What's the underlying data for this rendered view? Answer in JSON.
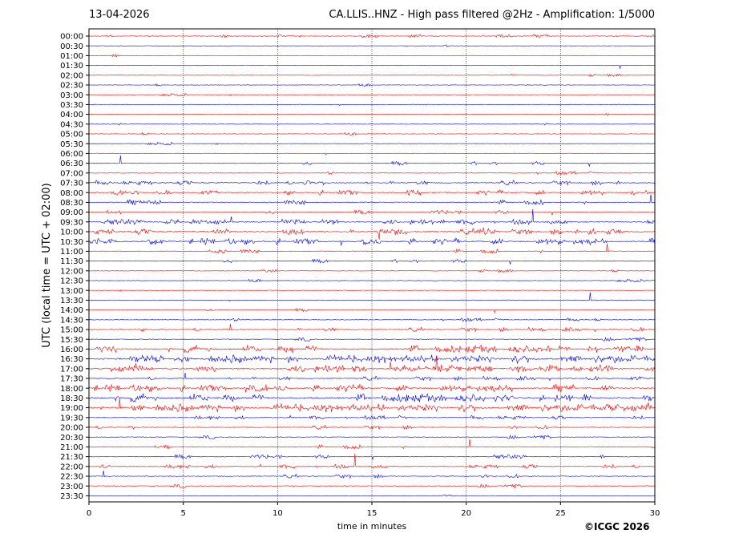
{
  "header": {
    "date": "13-04-2026",
    "title": "CA.LLIS..HNZ - High pass filtered @2Hz - Amplification: 1/5000"
  },
  "footer": {
    "copyright": "©ICGC 2026"
  },
  "colors": {
    "red_trace": "#ff0000",
    "blue_trace": "#0000ff",
    "grid": "#000000"
  },
  "chart_data": {
    "type": "line",
    "title": "CA.LLIS..HNZ - High pass filtered @2Hz - Amplification: 1/5000",
    "xlabel": "time in minutes",
    "ylabel": "UTC (local time = UTC + 02:00)",
    "xlim": [
      0,
      30
    ],
    "x_ticks": [
      "0",
      "5",
      "10",
      "15",
      "20",
      "25",
      "30"
    ],
    "grid": "vertical dotted lines at 5-minute intervals",
    "rows": [
      {
        "label": "00:00",
        "color": "red",
        "activity": 0.15
      },
      {
        "label": "00:30",
        "color": "blue",
        "activity": 0.05
      },
      {
        "label": "01:00",
        "color": "red",
        "activity": 0.03
      },
      {
        "label": "01:30",
        "color": "blue",
        "activity": 0.03
      },
      {
        "label": "02:00",
        "color": "red",
        "activity": 0.03
      },
      {
        "label": "02:30",
        "color": "blue",
        "activity": 0.03
      },
      {
        "label": "03:00",
        "color": "red",
        "activity": 0.08
      },
      {
        "label": "03:30",
        "color": "blue",
        "activity": 0.05
      },
      {
        "label": "04:00",
        "color": "red",
        "activity": 0.05
      },
      {
        "label": "04:30",
        "color": "blue",
        "activity": 0.05
      },
      {
        "label": "05:00",
        "color": "red",
        "activity": 0.06
      },
      {
        "label": "05:30",
        "color": "blue",
        "activity": 0.08
      },
      {
        "label": "06:00",
        "color": "red",
        "activity": 0.1
      },
      {
        "label": "06:30",
        "color": "blue",
        "activity": 0.18
      },
      {
        "label": "07:00",
        "color": "red",
        "activity": 0.15
      },
      {
        "label": "07:30",
        "color": "blue",
        "activity": 0.35
      },
      {
        "label": "08:00",
        "color": "red",
        "activity": 0.4
      },
      {
        "label": "08:30",
        "color": "blue",
        "activity": 0.4
      },
      {
        "label": "09:00",
        "color": "red",
        "activity": 0.25
      },
      {
        "label": "09:30",
        "color": "blue",
        "activity": 0.45
      },
      {
        "label": "10:00",
        "color": "red",
        "activity": 0.55
      },
      {
        "label": "10:30",
        "color": "blue",
        "activity": 0.6
      },
      {
        "label": "11:00",
        "color": "red",
        "activity": 0.3
      },
      {
        "label": "11:30",
        "color": "blue",
        "activity": 0.2
      },
      {
        "label": "12:00",
        "color": "red",
        "activity": 0.08
      },
      {
        "label": "12:30",
        "color": "blue",
        "activity": 0.1
      },
      {
        "label": "13:00",
        "color": "red",
        "activity": 0.06
      },
      {
        "label": "13:30",
        "color": "blue",
        "activity": 0.06
      },
      {
        "label": "14:00",
        "color": "red",
        "activity": 0.08
      },
      {
        "label": "14:30",
        "color": "blue",
        "activity": 0.15
      },
      {
        "label": "15:00",
        "color": "red",
        "activity": 0.3
      },
      {
        "label": "15:30",
        "color": "blue",
        "activity": 0.25
      },
      {
        "label": "16:00",
        "color": "red",
        "activity": 0.75
      },
      {
        "label": "16:30",
        "color": "blue",
        "activity": 0.85
      },
      {
        "label": "17:00",
        "color": "red",
        "activity": 0.75
      },
      {
        "label": "17:30",
        "color": "blue",
        "activity": 0.3
      },
      {
        "label": "18:00",
        "color": "red",
        "activity": 0.7
      },
      {
        "label": "18:30",
        "color": "blue",
        "activity": 0.85
      },
      {
        "label": "19:00",
        "color": "red",
        "activity": 0.85
      },
      {
        "label": "19:30",
        "color": "blue",
        "activity": 0.25
      },
      {
        "label": "20:00",
        "color": "red",
        "activity": 0.25
      },
      {
        "label": "20:30",
        "color": "blue",
        "activity": 0.25
      },
      {
        "label": "21:00",
        "color": "red",
        "activity": 0.3
      },
      {
        "label": "21:30",
        "color": "blue",
        "activity": 0.25
      },
      {
        "label": "22:00",
        "color": "red",
        "activity": 0.3
      },
      {
        "label": "22:30",
        "color": "blue",
        "activity": 0.25
      },
      {
        "label": "23:00",
        "color": "red",
        "activity": 0.25
      },
      {
        "label": "23:30",
        "color": "blue",
        "activity": 0.05
      }
    ]
  }
}
